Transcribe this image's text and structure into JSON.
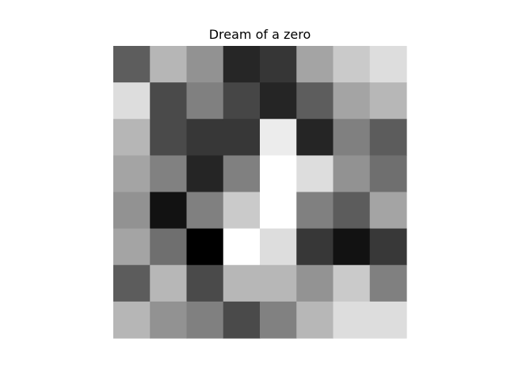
{
  "chart_data": {
    "type": "heatmap",
    "title": "Dream of a zero",
    "colormap": "gray",
    "grid": false,
    "axes_visible": false,
    "value_range": [
      0,
      255
    ],
    "rows": 8,
    "cols": 8,
    "values": [
      [
        93,
        182,
        146,
        38,
        54,
        164,
        202,
        221
      ],
      [
        221,
        74,
        128,
        70,
        37,
        93,
        164,
        183
      ],
      [
        182,
        74,
        55,
        55,
        236,
        37,
        128,
        92
      ],
      [
        164,
        129,
        37,
        128,
        255,
        221,
        146,
        111
      ],
      [
        146,
        18,
        128,
        202,
        255,
        128,
        92,
        164
      ],
      [
        164,
        111,
        0,
        255,
        221,
        55,
        18,
        56
      ],
      [
        92,
        183,
        74,
        183,
        183,
        147,
        202,
        128
      ],
      [
        182,
        146,
        128,
        74,
        129,
        183,
        221,
        221
      ]
    ]
  }
}
